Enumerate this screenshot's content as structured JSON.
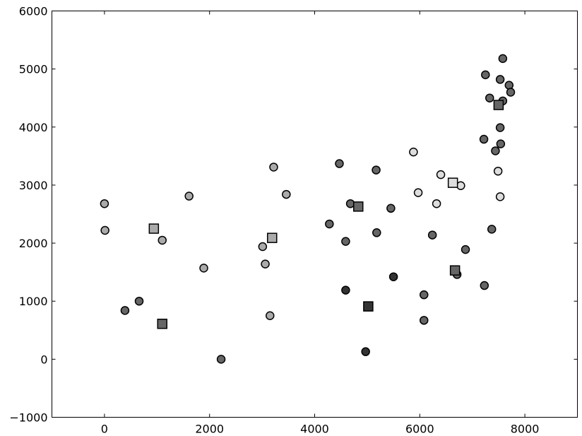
{
  "chart_data": {
    "type": "scatter",
    "title": "",
    "xlabel": "",
    "ylabel": "",
    "xlim": [
      -1000,
      9000
    ],
    "ylim": [
      -1000,
      6000
    ],
    "xticks": [
      0,
      2000,
      4000,
      6000,
      8000
    ],
    "yticks": [
      -1000,
      0,
      1000,
      2000,
      3000,
      4000,
      5000,
      6000
    ],
    "grid": false,
    "legend": "none",
    "series": [
      {
        "marker": "circle",
        "color": "#aaaaaa",
        "points": [
          [
            0,
            2680
          ],
          [
            10,
            2220
          ],
          [
            1100,
            2050
          ],
          [
            1610,
            2810
          ],
          [
            1890,
            1570
          ],
          [
            3010,
            1940
          ],
          [
            3060,
            1640
          ],
          [
            3150,
            750
          ],
          [
            3220,
            3310
          ],
          [
            3460,
            2840
          ]
        ]
      },
      {
        "marker": "square",
        "color": "#aaaaaa",
        "points": [
          [
            940,
            2250
          ],
          [
            3190,
            2090
          ]
        ]
      },
      {
        "marker": "circle",
        "color": "#666666",
        "points": [
          [
            390,
            840
          ],
          [
            660,
            1000
          ],
          [
            2220,
            0
          ],
          [
            4280,
            2330
          ],
          [
            4470,
            3370
          ],
          [
            4590,
            2030
          ],
          [
            4680,
            2680
          ],
          [
            5170,
            3260
          ],
          [
            5180,
            2180
          ],
          [
            5450,
            2600
          ],
          [
            6080,
            1110
          ],
          [
            6080,
            670
          ],
          [
            6240,
            2140
          ],
          [
            6710,
            1460
          ],
          [
            6870,
            1890
          ],
          [
            7230,
            1270
          ],
          [
            7220,
            3790
          ],
          [
            7370,
            2240
          ],
          [
            7440,
            3590
          ],
          [
            7530,
            3990
          ],
          [
            7540,
            3710
          ],
          [
            7580,
            5180
          ],
          [
            7250,
            4900
          ],
          [
            7330,
            4500
          ],
          [
            7530,
            4820
          ],
          [
            7700,
            4720
          ],
          [
            7580,
            4450
          ],
          [
            7730,
            4600
          ]
        ]
      },
      {
        "marker": "square",
        "color": "#666666",
        "points": [
          [
            1100,
            610
          ],
          [
            4830,
            2630
          ],
          [
            6670,
            1530
          ],
          [
            7500,
            4380
          ]
        ]
      },
      {
        "marker": "circle",
        "color": "#333333",
        "points": [
          [
            4590,
            1190
          ],
          [
            4970,
            130
          ],
          [
            5500,
            1420
          ]
        ]
      },
      {
        "marker": "square",
        "color": "#333333",
        "points": [
          [
            5020,
            910
          ]
        ]
      },
      {
        "marker": "circle",
        "color": "#dddddd",
        "points": [
          [
            5880,
            3570
          ],
          [
            5970,
            2870
          ],
          [
            6320,
            2680
          ],
          [
            6400,
            3180
          ],
          [
            6780,
            2990
          ],
          [
            7490,
            3240
          ],
          [
            7530,
            2800
          ]
        ]
      },
      {
        "marker": "square",
        "color": "#dddddd",
        "points": [
          [
            6630,
            3040
          ]
        ]
      }
    ],
    "xtick_labels": [
      "0",
      "2000",
      "4000",
      "6000",
      "8000"
    ],
    "ytick_labels": [
      "−1000",
      "0",
      "1000",
      "2000",
      "3000",
      "4000",
      "5000",
      "6000"
    ]
  }
}
